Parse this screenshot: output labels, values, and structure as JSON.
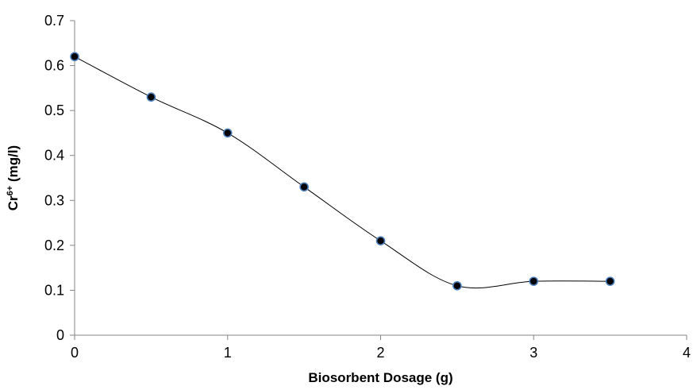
{
  "chart_data": {
    "type": "scatter",
    "title": "",
    "xlabel": "Biosorbent Dosage (g)",
    "ylabel": {
      "base": "Cr",
      "superscript": "6+",
      "rest": " (mg/l)"
    },
    "xlim": [
      0,
      4
    ],
    "ylim": [
      0,
      0.7
    ],
    "x_ticks": [
      0,
      1,
      2,
      3,
      4
    ],
    "y_ticks": [
      0,
      0.1,
      0.2,
      0.3,
      0.4,
      0.5,
      0.6,
      0.7
    ],
    "grid": false,
    "legend": "none",
    "line_style": "smoothed",
    "series": [
      {
        "x": [
          0,
          0.5,
          1,
          1.5,
          2,
          2.5,
          3,
          3.5
        ],
        "y": [
          0.62,
          0.53,
          0.45,
          0.33,
          0.21,
          0.11,
          0.12,
          0.12
        ],
        "line_color": "#000000",
        "marker_fill": "#000000",
        "marker_stroke": "#4a7ebb"
      }
    ]
  }
}
